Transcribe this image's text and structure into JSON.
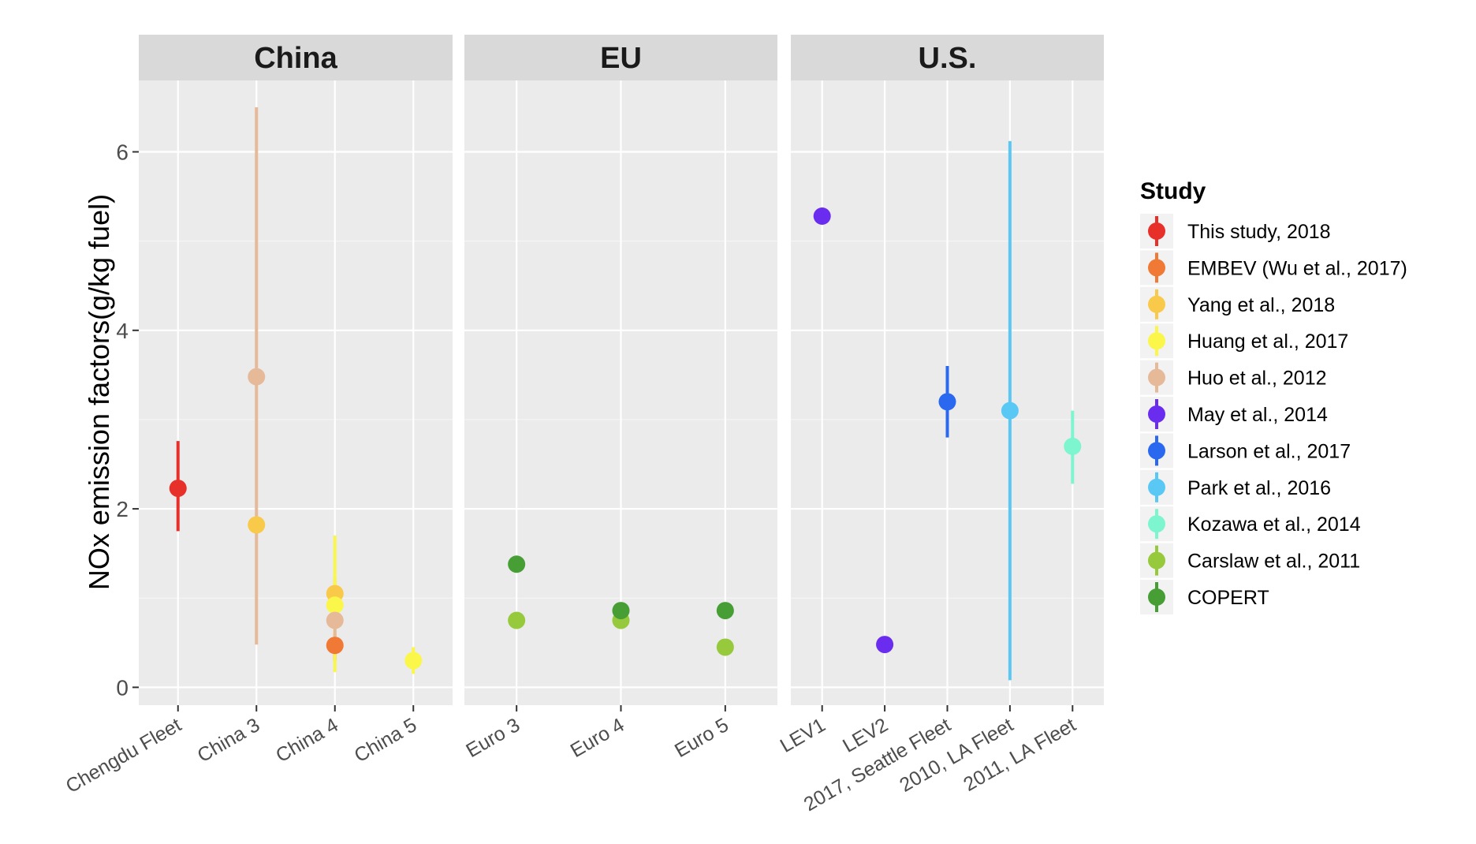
{
  "chart_data": {
    "type": "scatter",
    "ylabel": "NOx emission factors(g/kg fuel)",
    "ylim": [
      -0.2,
      6.8
    ],
    "y_ticks": [
      0,
      2,
      4,
      6
    ],
    "grid": true,
    "legend": {
      "title": "Study",
      "position": "right"
    },
    "facets": [
      {
        "name": "China",
        "categories": [
          "Chengdu Fleet",
          "China 3",
          "China 4",
          "China 5"
        ]
      },
      {
        "name": "EU",
        "categories": [
          "Euro 3",
          "Euro 4",
          "Euro 5"
        ]
      },
      {
        "name": "U.S.",
        "categories": [
          "LEV1",
          "LEV2",
          "2017, Seattle Fleet",
          "2010, LA Fleet",
          "2011, LA Fleet"
        ]
      }
    ],
    "series": [
      {
        "name": "This study, 2018",
        "color": "#e8302a",
        "points": [
          {
            "facet": "China",
            "x": "Chengdu Fleet",
            "y": 2.23,
            "ymin": 1.75,
            "ymax": 2.76
          }
        ]
      },
      {
        "name": "EMBEV (Wu et al., 2017)",
        "color": "#f07a35",
        "points": [
          {
            "facet": "China",
            "x": "China 4",
            "y": 0.47,
            "ymin": 0.3,
            "ymax": 0.6
          }
        ]
      },
      {
        "name": "Yang et al., 2018",
        "color": "#f9c94a",
        "points": [
          {
            "facet": "China",
            "x": "China 3",
            "y": 1.82
          },
          {
            "facet": "China",
            "x": "China 4",
            "y": 1.05,
            "ymin": 0.75,
            "ymax": 1.22
          }
        ]
      },
      {
        "name": "Huang et al., 2017",
        "color": "#fbf74a",
        "points": [
          {
            "facet": "China",
            "x": "China 4",
            "y": 0.92,
            "ymin": 0.17,
            "ymax": 1.7
          },
          {
            "facet": "China",
            "x": "China 5",
            "y": 0.3,
            "ymin": 0.15,
            "ymax": 0.45
          }
        ]
      },
      {
        "name": "Huo et al., 2012",
        "color": "#e6b999",
        "points": [
          {
            "facet": "China",
            "x": "China 3",
            "y": 3.48,
            "ymin": 0.48,
            "ymax": 6.5
          },
          {
            "facet": "China",
            "x": "China 4",
            "y": 0.75,
            "ymin": 0.45,
            "ymax": 0.95
          }
        ]
      },
      {
        "name": "May et al., 2014",
        "color": "#6a2df0",
        "points": [
          {
            "facet": "U.S.",
            "x": "LEV1",
            "y": 5.28
          },
          {
            "facet": "U.S.",
            "x": "LEV2",
            "y": 0.48
          }
        ]
      },
      {
        "name": "Larson et al., 2017",
        "color": "#2a68f0",
        "points": [
          {
            "facet": "U.S.",
            "x": "2017, Seattle Fleet",
            "y": 3.2,
            "ymin": 2.8,
            "ymax": 3.6
          }
        ]
      },
      {
        "name": "Park et al., 2016",
        "color": "#5ac8f5",
        "points": [
          {
            "facet": "U.S.",
            "x": "2010, LA Fleet",
            "y": 3.1,
            "ymin": 0.08,
            "ymax": 6.12
          }
        ]
      },
      {
        "name": "Kozawa et al., 2014",
        "color": "#7df5cf",
        "points": [
          {
            "facet": "U.S.",
            "x": "2011, LA Fleet",
            "y": 2.7,
            "ymin": 2.28,
            "ymax": 3.1
          }
        ]
      },
      {
        "name": "Carslaw et al., 2011",
        "color": "#97c93c",
        "points": [
          {
            "facet": "EU",
            "x": "Euro 3",
            "y": 0.75
          },
          {
            "facet": "EU",
            "x": "Euro 4",
            "y": 0.75
          },
          {
            "facet": "EU",
            "x": "Euro 5",
            "y": 0.45
          }
        ]
      },
      {
        "name": "COPERT",
        "color": "#469e35",
        "points": [
          {
            "facet": "EU",
            "x": "Euro 3",
            "y": 1.38
          },
          {
            "facet": "EU",
            "x": "Euro 4",
            "y": 0.86
          },
          {
            "facet": "EU",
            "x": "Euro 5",
            "y": 0.86
          }
        ]
      }
    ]
  }
}
